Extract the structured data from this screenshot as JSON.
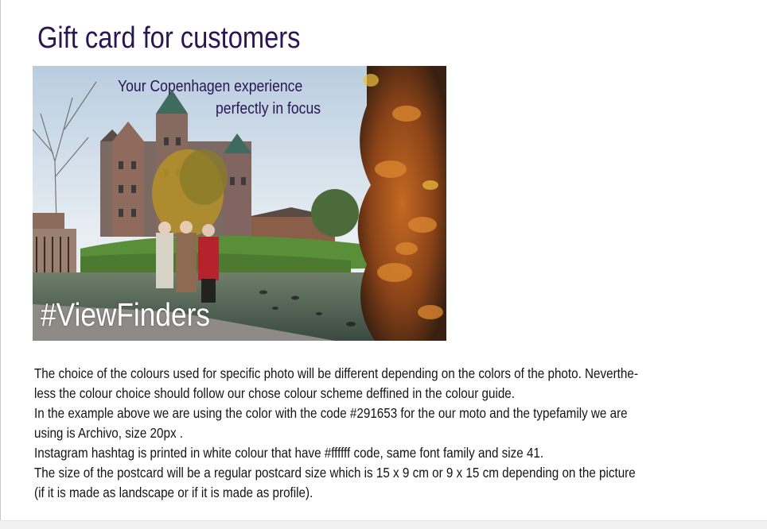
{
  "page": {
    "title": "Gift card for customers"
  },
  "postcard": {
    "moto_line1": "Your Copenhagen experience",
    "moto_line2": "perfectly in focus",
    "hashtag": "#ViewFinders"
  },
  "description": {
    "lines": [
      "The choice of the colours used for specific photo will be different depending on the colors of the photo. Neverthe-",
      "less the colour choice should follow our chose colour scheme deffined in the colour guide.",
      "In the example above we are using the color with the code #291653 for the our moto and the typefamily we are",
      "using is Archivo, size 20px .",
      "Instagram hashtag is printed in white colour that have #ffffff code, same font family and size 41.",
      "The size of the postcard will be a regular postcard size which is 15 x 9 cm or 9 x 15 cm depending on the picture",
      "(if it is made as landscape or if it is made as profile)."
    ]
  },
  "colors": {
    "moto": "#291653",
    "hashtag": "#ffffff"
  }
}
